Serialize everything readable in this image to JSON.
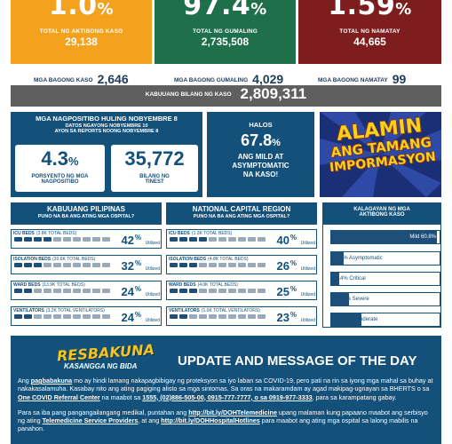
{
  "top": {
    "active": {
      "big": "1.0",
      "pct": "%",
      "label": "TOTAL NG AKTIBONG KASO",
      "num": "29,138",
      "color": "#f4a21e"
    },
    "recovered": {
      "big": "97.4",
      "pct": "%",
      "label": "TOTAL NG GUMALING",
      "num": "2,735,508",
      "color": "#1f6f4a"
    },
    "deaths": {
      "big": "1.59",
      "pct": "%",
      "label": "TOTAL NG NAMATAY",
      "num": "44,665",
      "color": "#7d1d1d"
    }
  },
  "new": {
    "cases_label": "MGA BAGONG KASO",
    "cases": "2,646",
    "recovered_label": "MGA BAGONG GUMALING",
    "recovered": "4,029",
    "deaths_label": "MGA BAGONG NAMATAY",
    "deaths": "99"
  },
  "total": {
    "label": "KABUUANG BILANG NG KASO",
    "value": "2,809,311"
  },
  "positivity": {
    "title": "MGA NAGPOSITIBO HULING NOBYEMBRE 8",
    "sub1": "DATOS NGAYONG NOBYEMBRE 10",
    "sub2": "AYON SA REPORTS NOONG NOBYEMBRE 8",
    "rate": "4.3",
    "rate_unit": "%",
    "rate_label1": "PORSYENTO NG MGA",
    "rate_label2": "NAGPOSITIBO",
    "tested": "35,772",
    "tested_label1": "BILANG NG",
    "tested_label2": "TINEST"
  },
  "mild": {
    "halos": "HALOS",
    "pct": "67.8",
    "unit": "%",
    "l1": "ANG MILD AT",
    "l2": "ASYMPTOMATIC",
    "l3": "NA KASO!"
  },
  "banner": {
    "l1": "ALAMIN",
    "l2": "ANG TAMANG",
    "l3": "IMPORMASYON"
  },
  "ph": {
    "title": "KABUUANG PILIPINAS",
    "sub": "PUNO NA BA ANG ATING MGA OSPITAL?",
    "rows": [
      {
        "label": "ICU BEDS",
        "note": "(3.8K TOTAL BEDS)",
        "pct": "42",
        "fill": 0.42
      },
      {
        "label": "ISOLATION BEDS",
        "note": "(20.6K TOTAL BEDS)",
        "pct": "32",
        "fill": 0.32
      },
      {
        "label": "WARD BEDS",
        "note": "(13.9K TOTAL BEDS)",
        "pct": "24",
        "fill": 0.24
      },
      {
        "label": "VENTILATORS",
        "note": "(3.2K TOTAL VENTILATORS)",
        "pct": "24",
        "fill": 0.24
      }
    ]
  },
  "ncr": {
    "title": "NATIONAL CAPITAL REGION",
    "sub": "PUNO NA BA ANG ATING MGA OSPITAL?",
    "rows": [
      {
        "label": "ICU BEDS",
        "note": "(1.3K TOTAL BEDS)",
        "pct": "40",
        "fill": 0.4
      },
      {
        "label": "ISOLATION BEDS",
        "note": "(4.8K TOTAL BEDS)",
        "pct": "26",
        "fill": 0.26
      },
      {
        "label": "WARD BEDS",
        "note": "(4.0K TOTAL BEDS)",
        "pct": "25",
        "fill": 0.25
      },
      {
        "label": "VENTILATORS",
        "note": "(1.0K TOTAL VENTILATORS)",
        "pct": "23",
        "fill": 0.23
      }
    ]
  },
  "utilized": "Utilized",
  "unit_pct": "%",
  "severity": {
    "title1": "KALAGAYAN NG MGA",
    "title2": "AKTIBONG KASO",
    "rows": [
      {
        "label": "Mild 60.8%",
        "value": 60.8
      },
      {
        "label": "7.0% Asymptomatic",
        "value": 7.0
      },
      {
        "label": "4.4% Critical",
        "value": 4.4
      },
      {
        "label": "10.4% Severe",
        "value": 10.4
      },
      {
        "label": "17.36% Moderate",
        "value": 17.36
      }
    ]
  },
  "message": {
    "logo1": "RESBAKUNA",
    "logo2": "KASANGGA NG BIDA",
    "heading": "UPDATE AND MESSAGE OF THE DAY",
    "p1a": "Ang ",
    "p1b": "pagbabakuna",
    "p1c": " mo ay hindi lamang nakapagbibigay ng proteksyon sa iyo laban sa COVID-19, pero pati na rin sa iyong mga mahal sa buhay at nakakasalamuha. Kasabay nito ang ating pagiging alisto sa mga sintomas. Sa oras na makaramdam ay agad makipag-ugnayan sa BHERTS o sa ",
    "p1d": "One COVID Referral Center",
    "p1e": " na maabot sa ",
    "p1f": "1555, (02)886-505-00, 0915-777-7777, o sa 0919-977-3333",
    "p1g": ", para sa karampatang gabay.",
    "p2a": "Para sa iba pang pangangailangang medikal, puntahan ang ",
    "p2b": "http://bit.ly/DOHTelemedicine",
    "p2c": " upang malaman kung papaano maabot ang serbisyo ng ating ",
    "p2d": "Telemedicine Service Providers",
    "p2e": ", at ang ",
    "p2f": "http://bit.ly/DOHHospitalHotlines",
    "p2g": " para maabot ang ating mga ospital sa lalong mabilis na panahon."
  }
}
